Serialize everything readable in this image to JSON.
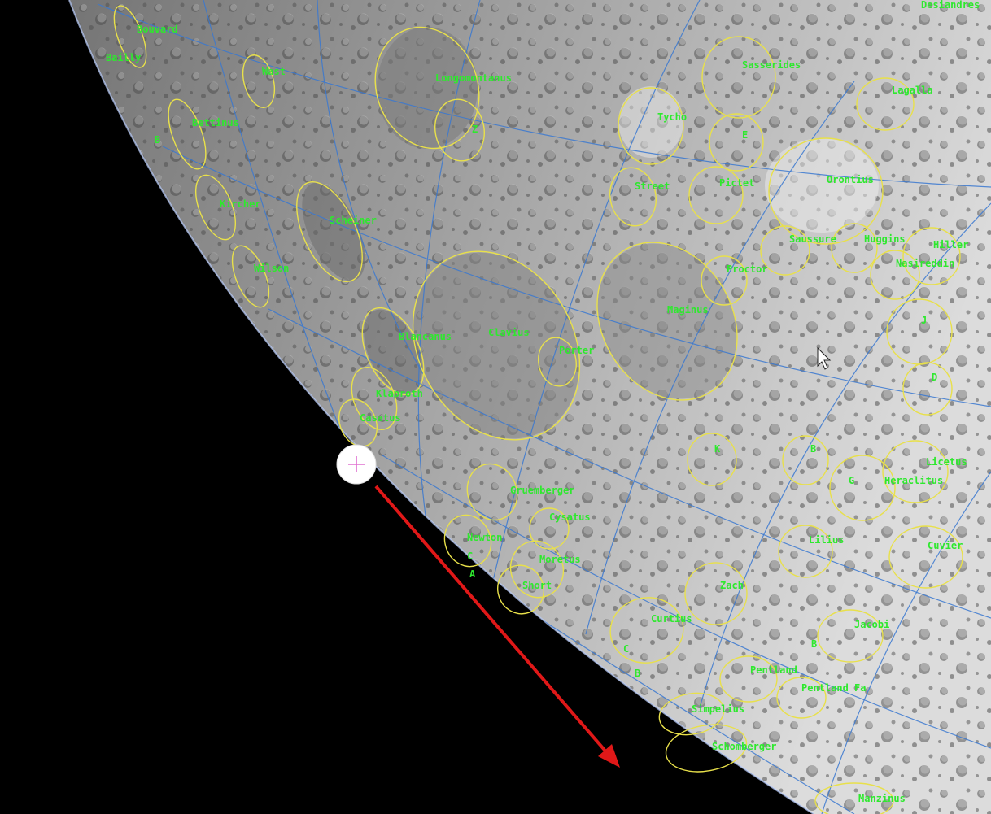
{
  "colors": {
    "space": "#000000",
    "surface": "#9a9a9a",
    "crater_ring": "#e8e04a",
    "label": "#2ee82e",
    "grid": "#3a78d0",
    "arrow": "#e01818",
    "cursor_cross": "#e070d0"
  },
  "icons": {
    "cursor": "crosshair-circle-icon",
    "pointer": "arrow-pointer-icon",
    "direction": "arrow-indicator-icon"
  },
  "craters": [
    {
      "label": "Bouvard"
    },
    {
      "label": "Bailly"
    },
    {
      "label": "Wast"
    },
    {
      "label": "Longomontanus"
    },
    {
      "label": "Z"
    },
    {
      "label": "Bettinus"
    },
    {
      "label": "B"
    },
    {
      "label": "Kircher"
    },
    {
      "label": "Scheiner"
    },
    {
      "label": "Wilson"
    },
    {
      "label": "Tycho"
    },
    {
      "label": "Street"
    },
    {
      "label": "Pictet"
    },
    {
      "label": "Sasserides"
    },
    {
      "label": "E"
    },
    {
      "label": "Lagalla"
    },
    {
      "label": "Desiandres"
    },
    {
      "label": "Orontius"
    },
    {
      "label": "Saussure"
    },
    {
      "label": "Huggins"
    },
    {
      "label": "Hiller"
    },
    {
      "label": "Nasireddin"
    },
    {
      "label": "Proctor"
    },
    {
      "label": "Maginus"
    },
    {
      "label": "Clavius"
    },
    {
      "label": "Porter"
    },
    {
      "label": "Blancanus"
    },
    {
      "label": "Klaproth"
    },
    {
      "label": "Casatus"
    },
    {
      "label": "J"
    },
    {
      "label": "D"
    },
    {
      "label": "K"
    },
    {
      "label": "G"
    },
    {
      "label": "B"
    },
    {
      "label": "Licetus"
    },
    {
      "label": "Heraclitus"
    },
    {
      "label": "Gruemberger"
    },
    {
      "label": "Cysatus"
    },
    {
      "label": "Moretus"
    },
    {
      "label": "Short"
    },
    {
      "label": "Newton"
    },
    {
      "label": "C"
    },
    {
      "label": "A"
    },
    {
      "label": "B"
    },
    {
      "label": "Lilius"
    },
    {
      "label": "Cuvier"
    },
    {
      "label": "Jacobi"
    },
    {
      "label": "Curtius"
    },
    {
      "label": "Zach"
    },
    {
      "label": "Pentland"
    },
    {
      "label": "Pentland Fa"
    },
    {
      "label": "C"
    },
    {
      "label": "B"
    },
    {
      "label": "Simpelius"
    },
    {
      "label": "Schomberger"
    },
    {
      "label": "Manzinus"
    }
  ]
}
